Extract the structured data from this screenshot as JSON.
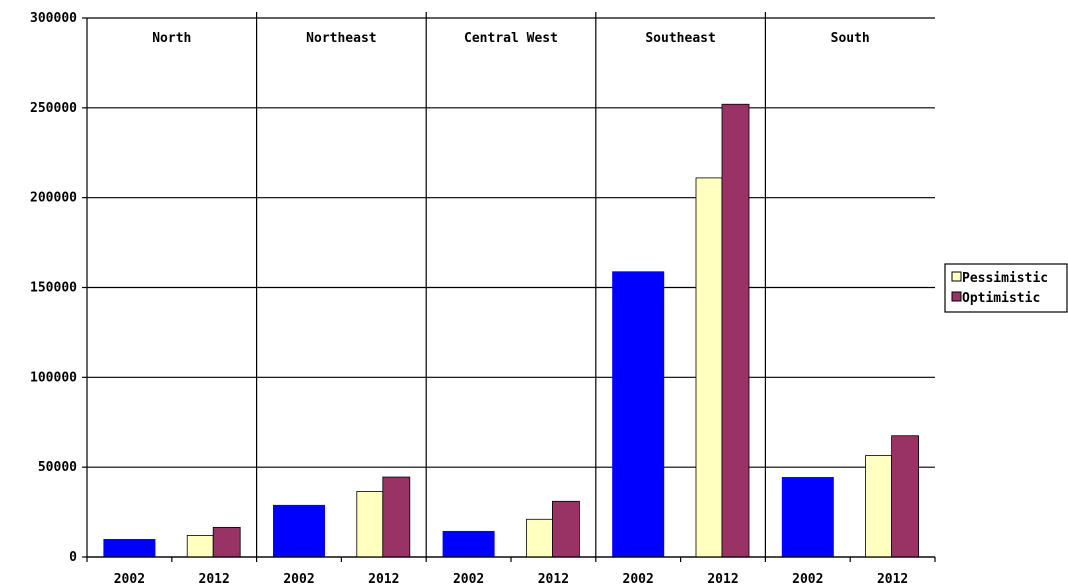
{
  "chart_data": {
    "type": "bar",
    "title": "",
    "xlabel": "",
    "ylabel": "",
    "ylim": [
      0,
      300000
    ],
    "yticks": [
      "0",
      "50000",
      "100000",
      "150000",
      "200000",
      "250000",
      "300000"
    ],
    "grid": true,
    "regions": [
      "North",
      "Northeast",
      "Central West",
      "Southeast",
      "South"
    ],
    "years": [
      "2002",
      "2012"
    ],
    "series": [
      {
        "name": "",
        "year": "2002",
        "color": "#0000ff",
        "values": [
          10000,
          29000,
          14500,
          159000,
          44500
        ]
      },
      {
        "name": "Pessimistic",
        "year": "2012",
        "color": "#ffffc0",
        "values": [
          12000,
          36500,
          21000,
          211000,
          56500
        ]
      },
      {
        "name": "Optimistic",
        "year": "2012",
        "color": "#993366",
        "values": [
          16500,
          44500,
          31000,
          252000,
          67500
        ]
      }
    ],
    "legend": {
      "position": "right",
      "entries": [
        "Pessimistic",
        "Optimistic"
      ]
    }
  }
}
